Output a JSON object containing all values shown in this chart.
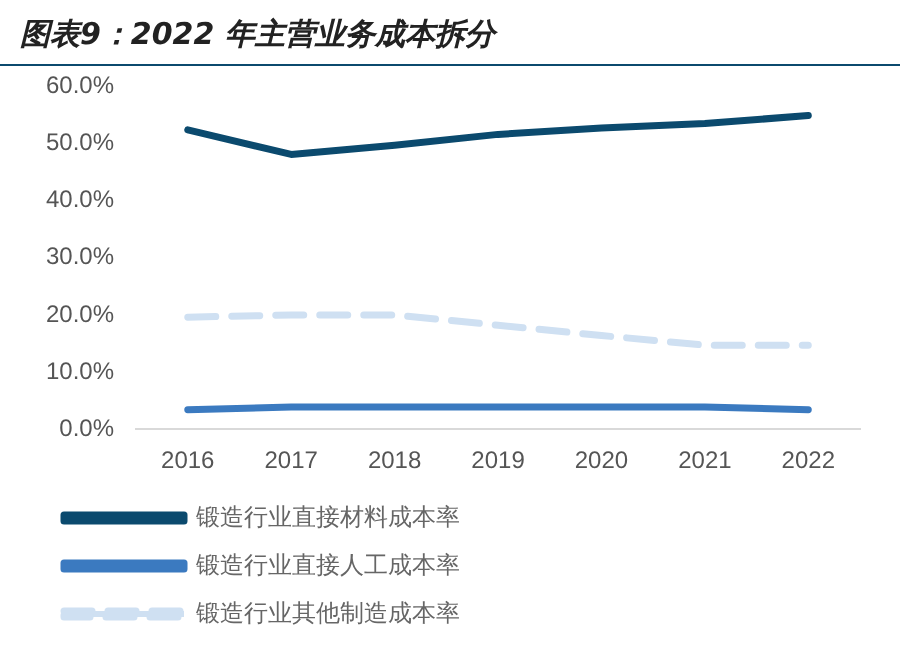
{
  "chart_data": {
    "type": "line",
    "title": "图表9：2022 年主营业务成本拆分",
    "categories": [
      "2016",
      "2017",
      "2018",
      "2019",
      "2020",
      "2021",
      "2022"
    ],
    "series": [
      {
        "name": "锻造行业直接材料成本率",
        "color": "#0b4a6e",
        "line_style": "solid",
        "values": [
          52.4,
          48.1,
          49.7,
          51.6,
          52.7,
          53.5,
          54.9
        ]
      },
      {
        "name": "锻造行业直接人工成本率",
        "color": "#3b7ac0",
        "line_style": "solid",
        "values": [
          3.4,
          3.9,
          3.9,
          3.9,
          3.9,
          3.9,
          3.4
        ]
      },
      {
        "name": "锻造行业其他制造成本率",
        "color": "#cfe0f2",
        "line_style": "dashed",
        "values": [
          19.6,
          20.0,
          20.0,
          18.2,
          16.4,
          14.7,
          14.7
        ]
      }
    ],
    "ylim": [
      0,
      60
    ],
    "yticks": [
      {
        "value": 0,
        "label": "0.0%"
      },
      {
        "value": 10,
        "label": "10.0%"
      },
      {
        "value": 20,
        "label": "20.0%"
      },
      {
        "value": 30,
        "label": "30.0%"
      },
      {
        "value": 40,
        "label": "40.0%"
      },
      {
        "value": 50,
        "label": "50.0%"
      },
      {
        "value": 60,
        "label": "60.0%"
      }
    ],
    "grid": false,
    "legend": "bottom",
    "marker": "none"
  }
}
